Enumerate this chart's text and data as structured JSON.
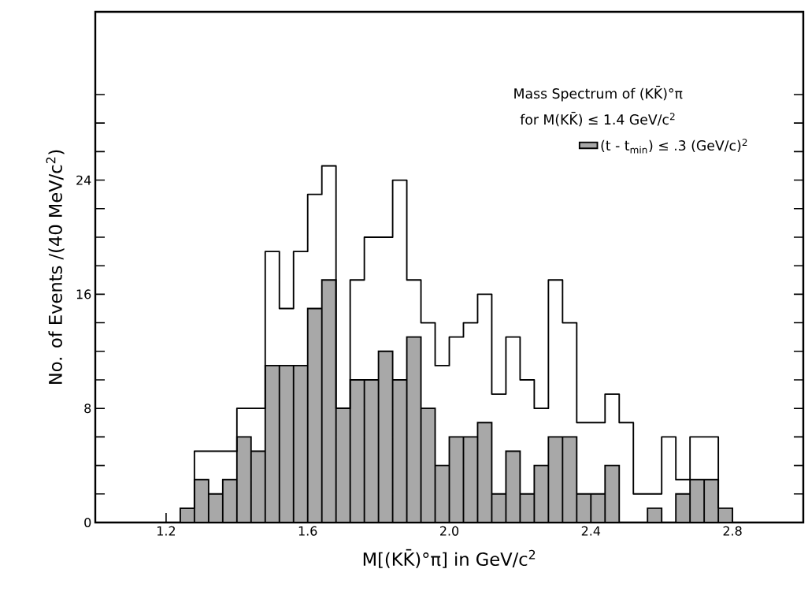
{
  "chart_data": {
    "type": "histogram",
    "title": "Mass Spectrum of (KK̄)°π",
    "subtitle": "for M(KK̄) ≤ 1.4 GeV/c$^{2}$",
    "xlabel": "M[(KK̄)°π] in GeV/c$^{2}$",
    "ylabel": "No. of Events /(40 MeV/c$^{2}$)",
    "bins": [
      1.24,
      1.28,
      1.32,
      1.36,
      1.4,
      1.44,
      1.48,
      1.52,
      1.56,
      1.6,
      1.64,
      1.68,
      1.72,
      1.76,
      1.8,
      1.84,
      1.88,
      1.92,
      1.96,
      2.0,
      2.04,
      2.08,
      2.12,
      2.16,
      2.2,
      2.24,
      2.28,
      2.32,
      2.36,
      2.4,
      2.44,
      2.48,
      2.52,
      2.56,
      2.6,
      2.64,
      2.68,
      2.72,
      2.76,
      2.8
    ],
    "series": [
      {
        "type": "step",
        "color": "#000000",
        "x": [
          1.24,
          1.28,
          1.32,
          1.36,
          1.4,
          1.44,
          1.48,
          1.52,
          1.56,
          1.6,
          1.64,
          1.68,
          1.72,
          1.76,
          1.8,
          1.84,
          1.88,
          1.92,
          1.96,
          2.0,
          2.04,
          2.08,
          2.12,
          2.16,
          2.2,
          2.24,
          2.28,
          2.32,
          2.36,
          2.4,
          2.44,
          2.48,
          2.52,
          2.56,
          2.6,
          2.64,
          2.68,
          2.72,
          2.76
        ],
        "values": [
          1,
          5,
          5,
          5,
          8,
          8,
          19,
          15,
          19,
          23,
          25,
          8,
          17,
          20,
          20,
          24,
          17,
          14,
          11,
          13,
          14,
          16,
          9,
          13,
          10,
          8,
          17,
          14,
          7,
          7,
          9,
          7,
          2,
          2,
          6,
          3,
          6,
          6,
          1
        ]
      },
      {
        "name": "(t - t$_{min}$) ≤ .3 (GeV/c)$^{2}$",
        "color": "#a8a8a8",
        "values": [
          1,
          3,
          2,
          3,
          6,
          5,
          11,
          11,
          11,
          15,
          17,
          8,
          10,
          10,
          12,
          10,
          13,
          8,
          4,
          6,
          6,
          7,
          2,
          5,
          2,
          4,
          6,
          6,
          2,
          2,
          4,
          0,
          0,
          1,
          0,
          2,
          3,
          3,
          1
        ]
      }
    ],
    "xlim": [
      1.0,
      3.0
    ],
    "ylim": [
      0,
      35.8
    ],
    "xticks": [
      {
        "value": 1.2,
        "label": "1.2"
      },
      {
        "value": 1.4,
        "label": null
      },
      {
        "value": 1.6,
        "label": "1.6"
      },
      {
        "value": 1.8,
        "label": null
      },
      {
        "value": 2.0,
        "label": "2.0"
      },
      {
        "value": 2.2,
        "label": null
      },
      {
        "value": 2.4,
        "label": "2.4"
      },
      {
        "value": 2.6,
        "label": null
      },
      {
        "value": 2.8,
        "label": "2.8"
      }
    ],
    "yticks": [
      0,
      {
        "value": 2,
        "label": null
      },
      {
        "value": 4,
        "label": null
      },
      {
        "value": 6,
        "label": null
      },
      8,
      {
        "value": 10,
        "label": null
      },
      {
        "value": 12,
        "label": null
      },
      {
        "value": 14,
        "label": null
      },
      16,
      {
        "value": 18,
        "label": null
      },
      {
        "value": 20,
        "label": null
      },
      {
        "value": 22,
        "label": null
      },
      24,
      {
        "value": 26,
        "label": null
      },
      {
        "value": 28,
        "label": null
      },
      {
        "value": 30,
        "label": null
      }
    ],
    "legend": "top right",
    "grid": false
  }
}
